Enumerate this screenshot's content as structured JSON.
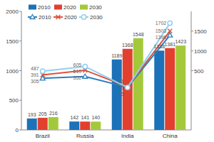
{
  "chart_data": {
    "type": "bar",
    "categories": [
      "Brazil",
      "Russia",
      "India",
      "China"
    ],
    "series": [
      {
        "name": "2010",
        "type": "bar",
        "color": "#1b72b8",
        "values": [
          193,
          142,
          1189,
          1338
        ]
      },
      {
        "name": "2020",
        "type": "bar",
        "color": "#e2402f",
        "values": [
          205,
          141,
          1368,
          1381
        ]
      },
      {
        "name": "2030",
        "type": "bar",
        "color": "#a3c93a",
        "values": [
          216,
          140,
          1548,
          1423
        ]
      },
      {
        "name": "2010",
        "type": "line",
        "axis": "y2",
        "color": "#2a7fc0",
        "marker": "triangle",
        "values": [
          305,
          352,
          78,
          1396
        ]
      },
      {
        "name": "2020",
        "type": "line",
        "axis": "y2",
        "color": "#e0503a",
        "marker": "x",
        "values": [
          391,
          510,
          91,
          1503
        ]
      },
      {
        "name": "2030",
        "type": "line",
        "axis": "y2",
        "color": "#8fd0f0",
        "marker": "circle",
        "values": [
          487,
          605,
          75,
          1702
        ]
      }
    ],
    "ylim": [
      0,
      2000
    ],
    "yticks": [
      0,
      500,
      1000,
      1500,
      2000
    ],
    "y2lim": [
      -1000,
      2000
    ],
    "y2ticks": [
      500,
      1000,
      1500
    ],
    "grid": false,
    "legend": "upper left",
    "data_labels": true
  }
}
